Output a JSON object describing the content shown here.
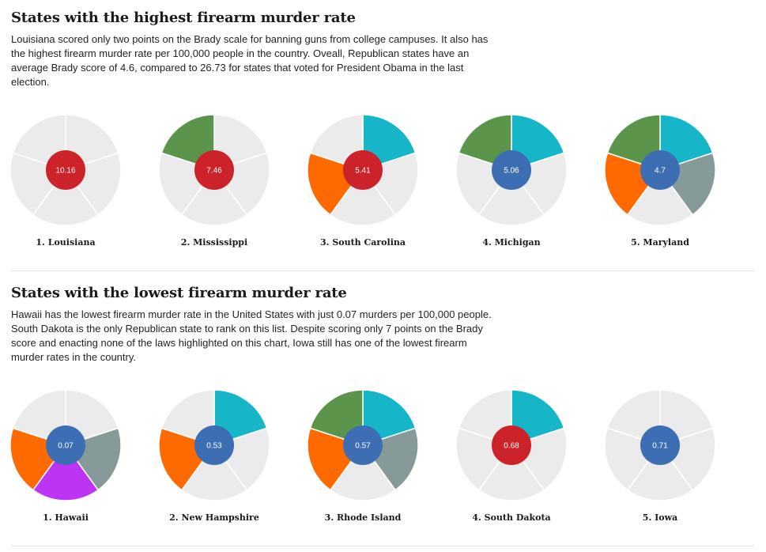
{
  "colors": {
    "segment_off": "#ebebeb",
    "segment_green": "#5b944b",
    "segment_cyan": "#17b5c8",
    "segment_orange": "#ff6a00",
    "segment_gray": "#869a99",
    "segment_purple": "#bd34f5",
    "center_red": "#cc2229",
    "center_blue": "#3d6eb4"
  },
  "highest": {
    "title": "States with the highest firearm murder rate",
    "description": "Louisiana scored only two points on the Brady scale for banning guns from college campuses. It also has the highest firearm murder rate per 100,000 people in the country. Oveall, Republican states have an average Brady score of 4.6, compared to 26.73 for states that voted for President Obama in the last election."
  },
  "lowest": {
    "title": "States with the lowest firearm murder rate",
    "description": "Hawaii has the lowest firearm murder rate in the United States with just 0.07 murders per 100,000 people. South Dakota is the only Republican state to rank on this list. Despite scoring only 7 points on the Brady score and enacting none of the laws highlighted on this chart, Iowa still has one of the lowest firearm murder rates in the country."
  },
  "chart_data": [
    {
      "type": "pie",
      "group": "highest",
      "segments_per_chart": 5,
      "charts": [
        {
          "label": "1. Louisiana",
          "rate": "10.16",
          "center_color": "red",
          "segments": [
            "off",
            "off",
            "off",
            "off",
            "off"
          ]
        },
        {
          "label": "2. Mississippi",
          "rate": "7.46",
          "center_color": "red",
          "segments": [
            "off",
            "off",
            "off",
            "off",
            "green"
          ]
        },
        {
          "label": "3. South Carolina",
          "rate": "5.41",
          "center_color": "red",
          "segments": [
            "cyan",
            "off",
            "off",
            "orange",
            "off"
          ]
        },
        {
          "label": "4. Michigan",
          "rate": "5.06",
          "center_color": "blue",
          "segments": [
            "cyan",
            "off",
            "off",
            "off",
            "green"
          ]
        },
        {
          "label": "5. Maryland",
          "rate": "4.7",
          "center_color": "blue",
          "segments": [
            "cyan",
            "gray",
            "off",
            "orange",
            "green"
          ]
        }
      ]
    },
    {
      "type": "pie",
      "group": "lowest",
      "segments_per_chart": 5,
      "charts": [
        {
          "label": "1. Hawaii",
          "rate": "0.07",
          "center_color": "blue",
          "segments": [
            "off",
            "gray",
            "purple",
            "orange",
            "off"
          ]
        },
        {
          "label": "2. New Hampshire",
          "rate": "0.53",
          "center_color": "blue",
          "segments": [
            "cyan",
            "off",
            "off",
            "orange",
            "off"
          ]
        },
        {
          "label": "3. Rhode Island",
          "rate": "0.57",
          "center_color": "blue",
          "segments": [
            "cyan",
            "gray",
            "off",
            "orange",
            "green"
          ]
        },
        {
          "label": "4. South Dakota",
          "rate": "0.68",
          "center_color": "red",
          "segments": [
            "cyan",
            "off",
            "off",
            "off",
            "off"
          ]
        },
        {
          "label": "5. Iowa",
          "rate": "0.71",
          "center_color": "blue",
          "segments": [
            "off",
            "off",
            "off",
            "off",
            "off"
          ]
        }
      ]
    }
  ]
}
